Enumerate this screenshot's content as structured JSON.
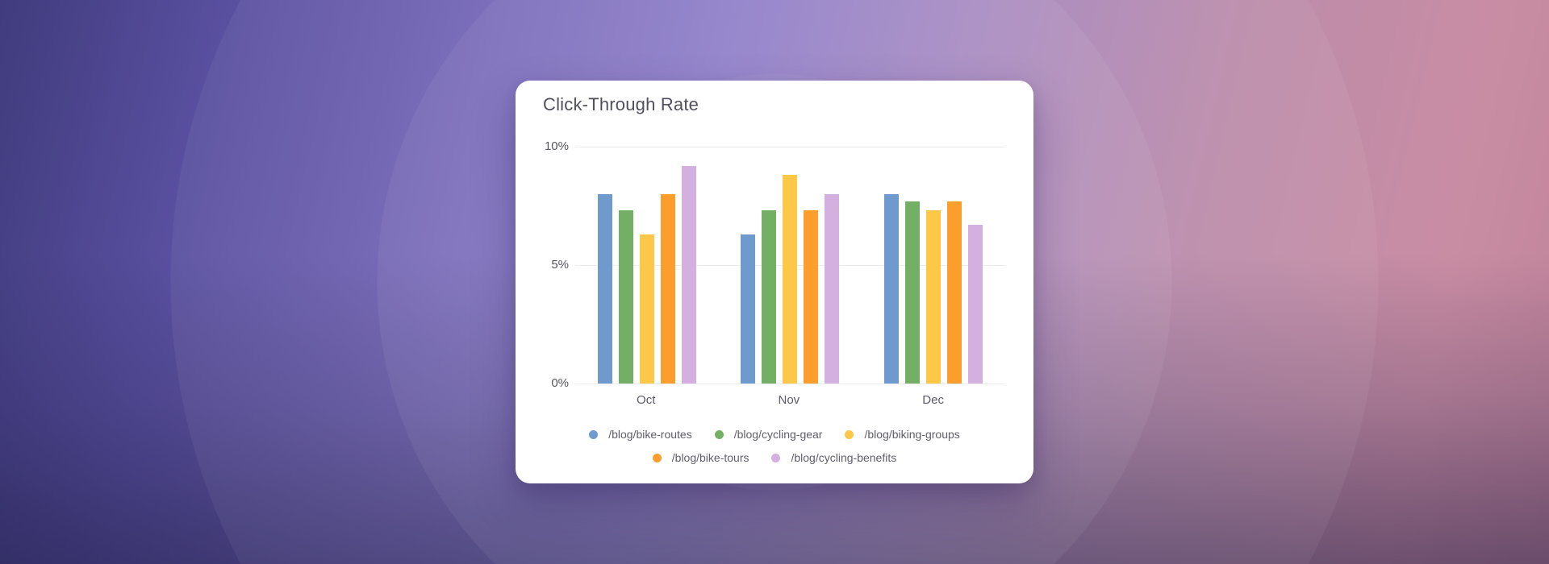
{
  "card": {
    "title": "Click-Through Rate"
  },
  "chart_data": {
    "type": "bar",
    "title": "Click-Through Rate",
    "categories": [
      "Oct",
      "Nov",
      "Dec"
    ],
    "series": [
      {
        "name": "/blog/bike-routes",
        "color": "#6E9ACE",
        "values": [
          8.0,
          6.3,
          8.0
        ]
      },
      {
        "name": "/blog/cycling-gear",
        "color": "#73AF64",
        "values": [
          7.3,
          7.3,
          7.7
        ]
      },
      {
        "name": "/blog/biking-groups",
        "color": "#FDC847",
        "values": [
          6.3,
          8.8,
          7.3
        ]
      },
      {
        "name": "/blog/bike-tours",
        "color": "#FB9E2C",
        "values": [
          8.0,
          7.3,
          7.7
        ]
      },
      {
        "name": "/blog/cycling-benefits",
        "color": "#D4B0E1",
        "values": [
          9.2,
          8.0,
          6.7
        ]
      }
    ],
    "xlabel": "",
    "ylabel": "",
    "ylim": [
      0,
      10
    ],
    "yticks": [
      {
        "value": 0,
        "label": "0%"
      },
      {
        "value": 5,
        "label": "5%"
      },
      {
        "value": 10,
        "label": "10%"
      }
    ],
    "grid": true,
    "legend_position": "bottom",
    "legend_rows": [
      [
        0,
        1,
        2
      ],
      [
        3,
        4
      ]
    ]
  },
  "theme": {
    "card_background": "#ffffff",
    "title_color": "#51505e",
    "axis_text_color": "#56555f",
    "gridline_color": "#ebebf0",
    "bg_gradient_start": "#403c7e",
    "bg_gradient_mid": "#8b7ac7",
    "bg_gradient_end": "#c98da3"
  }
}
